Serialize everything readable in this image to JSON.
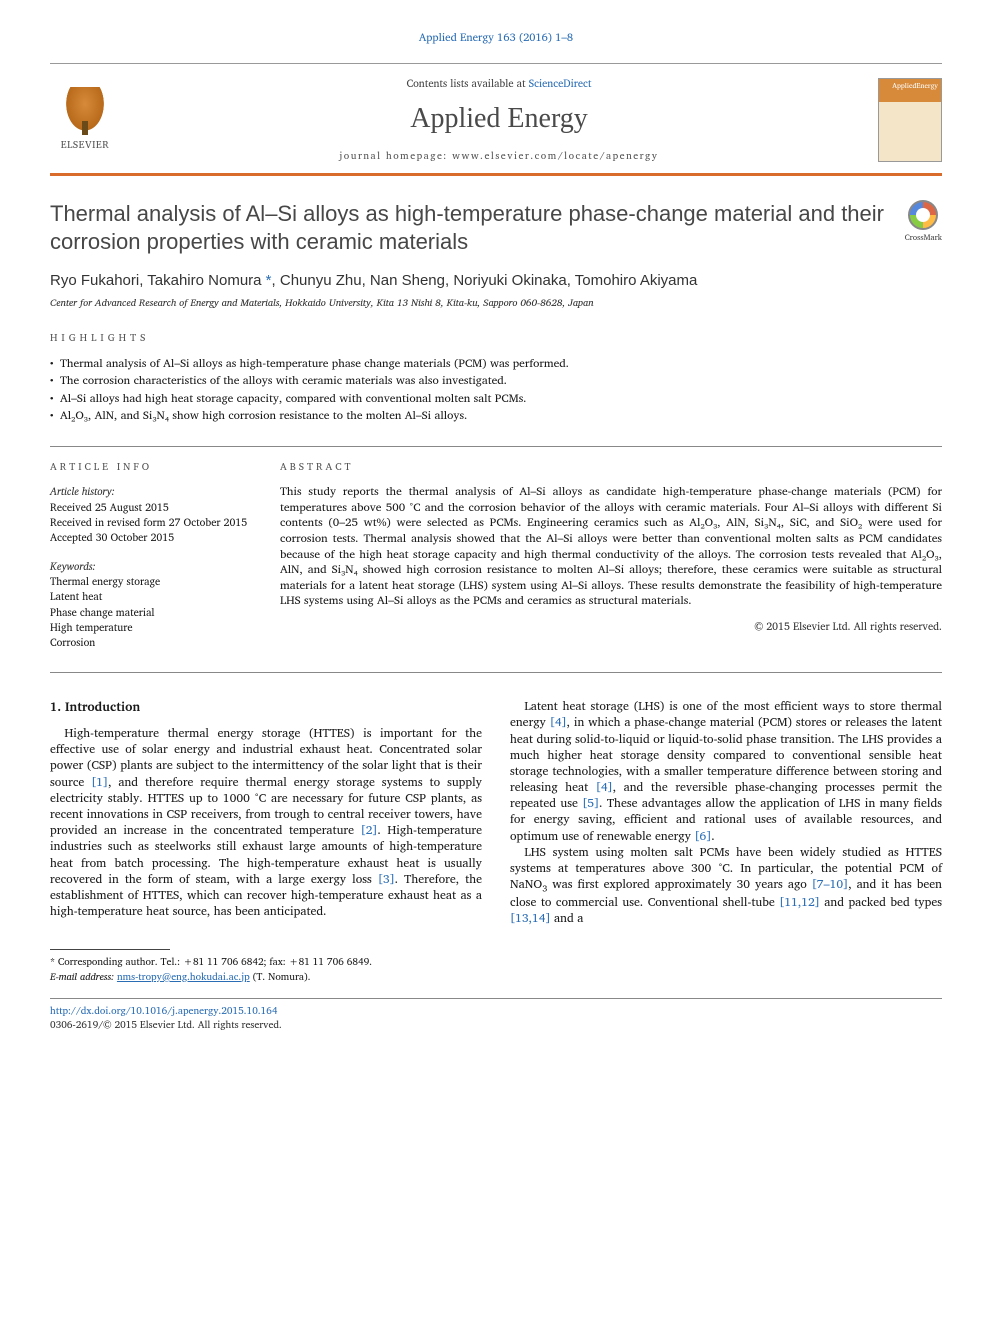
{
  "citation": "Applied Energy 163 (2016) 1–8",
  "header": {
    "contents_prefix": "Contents lists available at ",
    "contents_link": "ScienceDirect",
    "journal": "Applied Energy",
    "homepage_prefix": "journal homepage: ",
    "homepage_url": "www.elsevier.com/locate/apenergy",
    "publisher": "ELSEVIER",
    "cover_label": "AppliedEnergy"
  },
  "crossmark": "CrossMark",
  "title": "Thermal analysis of Al–Si alloys as high-temperature phase-change material and their corrosion properties with ceramic materials",
  "authors_html": "Ryo Fukahori, Takahiro Nomura *, Chunyu Zhu, Nan Sheng, Noriyuki Okinaka, Tomohiro Akiyama",
  "affiliation": "Center for Advanced Research of Energy and Materials, Hokkaido University, Kita 13 Nishi 8, Kita-ku, Sapporo 060-8628, Japan",
  "highlights": {
    "label": "HIGHLIGHTS",
    "items": [
      "Thermal analysis of Al–Si alloys as high-temperature phase change materials (PCM) was performed.",
      "The corrosion characteristics of the alloys with ceramic materials was also investigated.",
      "Al–Si alloys had high heat storage capacity, compared with conventional molten salt PCMs.",
      "Al₂O₃, AlN, and Si₃N₄ show high corrosion resistance to the molten Al–Si alloys."
    ]
  },
  "article_info": {
    "label": "ARTICLE INFO",
    "history_label": "Article history:",
    "history": [
      "Received 25 August 2015",
      "Received in revised form 27 October 2015",
      "Accepted 30 October 2015"
    ],
    "keywords_label": "Keywords:",
    "keywords": [
      "Thermal energy storage",
      "Latent heat",
      "Phase change material",
      "High temperature",
      "Corrosion"
    ]
  },
  "abstract": {
    "label": "ABSTRACT",
    "text": "This study reports the thermal analysis of Al–Si alloys as candidate high-temperature phase-change materials (PCM) for temperatures above 500 °C and the corrosion behavior of the alloys with ceramic materials. Four Al–Si alloys with different Si contents (0–25 wt%) were selected as PCMs. Engineering ceramics such as Al₂O₃, AlN, Si₃N₄, SiC, and SiO₂ were used for corrosion tests. Thermal analysis showed that the Al–Si alloys were better than conventional molten salts as PCM candidates because of the high heat storage capacity and high thermal conductivity of the alloys. The corrosion tests revealed that Al₂O₃, AlN, and Si₃N₄ showed high corrosion resistance to molten Al–Si alloys; therefore, these ceramics were suitable as structural materials for a latent heat storage (LHS) system using Al–Si alloys. These results demonstrate the feasibility of high-temperature LHS systems using Al–Si alloys as the PCMs and ceramics as structural materials.",
    "copyright": "© 2015 Elsevier Ltd. All rights reserved."
  },
  "body": {
    "section_number": "1.",
    "section_title": "Introduction",
    "p1": "High-temperature thermal energy storage (HTTES) is important for the effective use of solar energy and industrial exhaust heat. Concentrated solar power (CSP) plants are subject to the intermittency of the solar light that is their source [1], and therefore require thermal energy storage systems to supply electricity stably. HTTES up to 1000 °C are necessary for future CSP plants, as recent innovations in CSP receivers, from trough to central receiver towers, have provided an increase in the concentrated temperature [2]. High-temperature industries such as steelworks still exhaust large amounts of high-temperature heat from batch processing. The high-temperature exhaust heat is usually recovered in the form of steam, with a large exergy loss [3]. Therefore, the establishment",
    "p2": "of HTTES, which can recover high-temperature exhaust heat as a high-temperature heat source, has been anticipated.",
    "p3": "Latent heat storage (LHS) is one of the most efficient ways to store thermal energy [4], in which a phase-change material (PCM) stores or releases the latent heat during solid-to-liquid or liquid-to-solid phase transition. The LHS provides a much higher heat storage density compared to conventional sensible heat storage technologies, with a smaller temperature difference between storing and releasing heat [4], and the reversible phase-changing processes permit the repeated use [5]. These advantages allow the application of LHS in many fields for energy saving, efficient and rational uses of available resources, and optimum use of renewable energy [6].",
    "p4": "LHS system using molten salt PCMs have been widely studied as HTTES systems at temperatures above 300 °C. In particular, the potential PCM of NaNO₃ was first explored approximately 30 years ago [7–10], and it has been close to commercial use. Conventional shell-tube [11,12] and packed bed types [13,14] and a"
  },
  "footnotes": {
    "corr": "* Corresponding author. Tel.: +81 11 706 6842; fax: +81 11 706 6849.",
    "email_label": "E-mail address:",
    "email": "nms-tropy@eng.hokudai.ac.jp",
    "email_person": "(T. Nomura)."
  },
  "footer": {
    "doi": "http://dx.doi.org/10.1016/j.apenergy.2015.10.164",
    "issn_line": "0306-2619/© 2015 Elsevier Ltd. All rights reserved."
  },
  "colors": {
    "link": "#2a6db5",
    "accent": "#d96b2b",
    "body": "#1a1a1a"
  }
}
